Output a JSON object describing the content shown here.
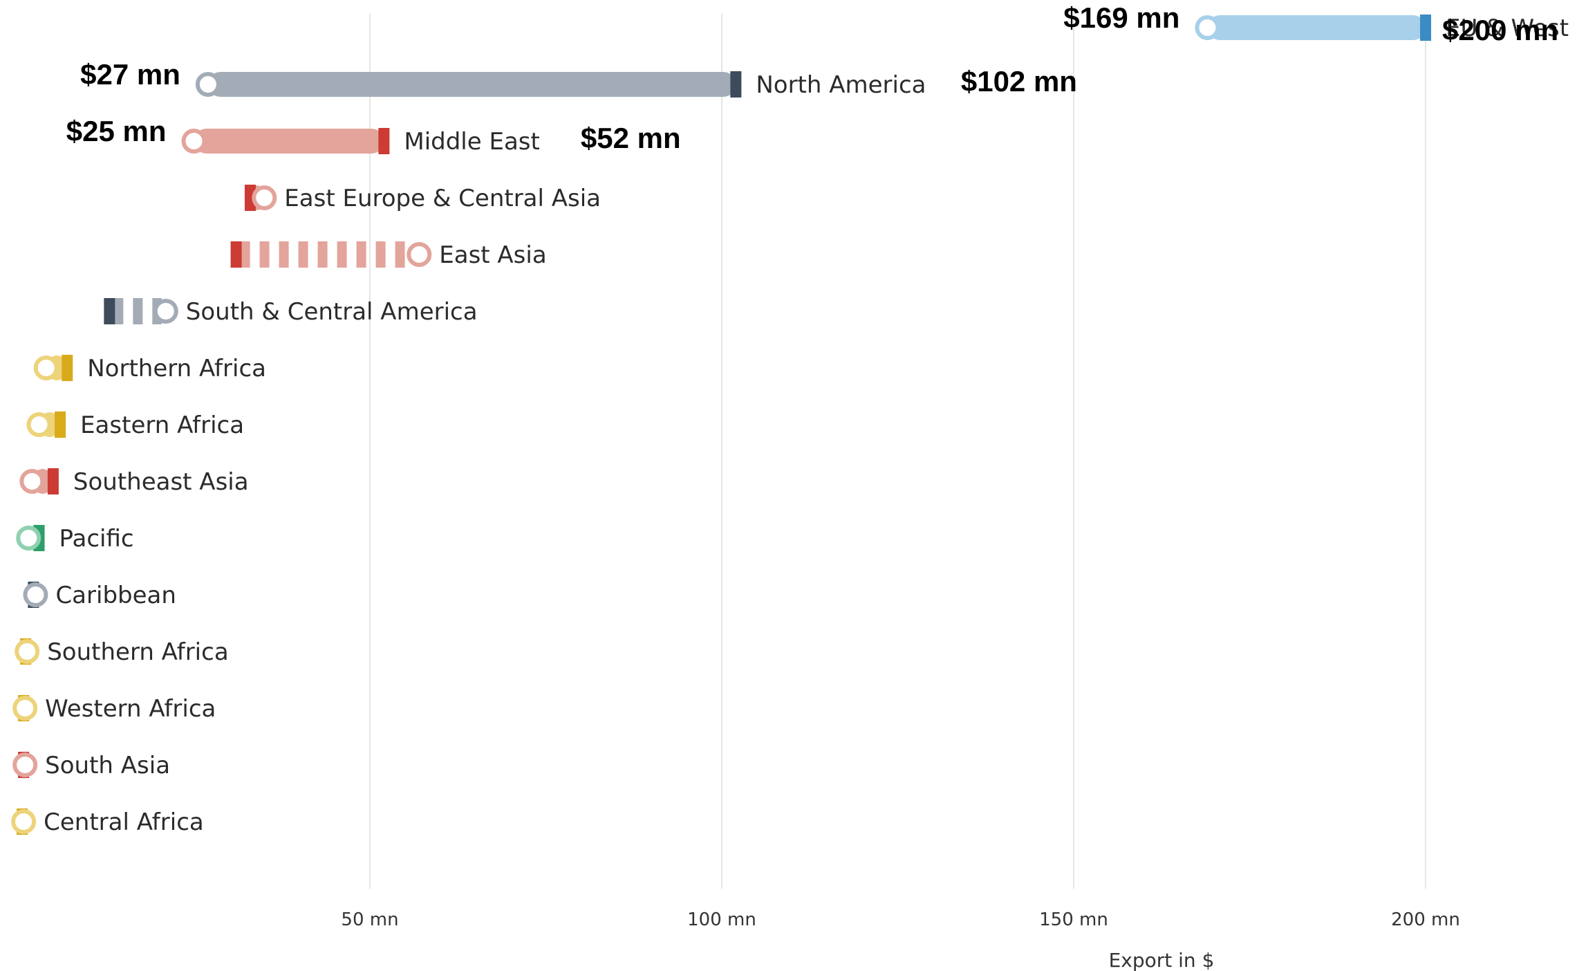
{
  "chart_data": {
    "type": "dumbbell",
    "title": "",
    "xlabel": "Export in $",
    "ylabel": "",
    "xlim": [
      0,
      220
    ],
    "x_ticks": [
      {
        "value": 50,
        "label": "50 mn"
      },
      {
        "value": 100,
        "label": "100 mn"
      },
      {
        "value": 150,
        "label": "150 mn"
      },
      {
        "value": 200,
        "label": "200 mn"
      }
    ],
    "grid": "vertical",
    "series": [
      {
        "name": "EU & West Europe",
        "start": 169,
        "end": 200,
        "color": "#a8d0ea",
        "end_color": "#3b8cc4",
        "style": "solid",
        "start_label": "$169 mn",
        "end_label": "$200 mn"
      },
      {
        "name": "North America",
        "start": 27,
        "end": 102,
        "color": "#a3acb6",
        "end_color": "#3d4b5c",
        "style": "solid",
        "start_label": "$27 mn",
        "end_label": "$102 mn"
      },
      {
        "name": "Middle East",
        "start": 25,
        "end": 52,
        "color": "#e3a49b",
        "end_color": "#cc3b34",
        "style": "solid",
        "start_label": "$25 mn",
        "end_label": "$52 mn"
      },
      {
        "name": "East Europe & Central Asia",
        "start": 35,
        "end": 33,
        "color": "#e3a49b",
        "end_color": "#cc3b34",
        "style": "solid"
      },
      {
        "name": "East Asia",
        "start": 57,
        "end": 31,
        "color": "#e3a49b",
        "end_color": "#cc3b34",
        "style": "dashed"
      },
      {
        "name": "South & Central America",
        "start": 21,
        "end": 13,
        "color": "#a3acb6",
        "end_color": "#3d4b5c",
        "style": "dashed"
      },
      {
        "name": "Northern Africa",
        "start": 4,
        "end": 7,
        "color": "#edd37a",
        "end_color": "#d9aa1a",
        "style": "solid"
      },
      {
        "name": "Eastern Africa",
        "start": 3,
        "end": 6,
        "color": "#edd37a",
        "end_color": "#d9aa1a",
        "style": "solid"
      },
      {
        "name": "Southeast Asia",
        "start": 2,
        "end": 5,
        "color": "#e3a49b",
        "end_color": "#cc3b34",
        "style": "solid"
      },
      {
        "name": "Pacific",
        "start": 1.5,
        "end": 3,
        "color": "#8fd0b0",
        "end_color": "#2e9e6a",
        "style": "solid"
      },
      {
        "name": "Caribbean",
        "start": 2.5,
        "end": 2.2,
        "color": "#a3acb6",
        "end_color": "#3d4b5c",
        "style": "solid"
      },
      {
        "name": "Southern Africa",
        "start": 1.3,
        "end": 1.1,
        "color": "#edd37a",
        "end_color": "#d9aa1a",
        "style": "solid"
      },
      {
        "name": "Western Africa",
        "start": 1.0,
        "end": 0.8,
        "color": "#edd37a",
        "end_color": "#d9aa1a",
        "style": "solid"
      },
      {
        "name": "South Asia",
        "start": 1.0,
        "end": 0.8,
        "color": "#e3a49b",
        "end_color": "#cc3b34",
        "style": "solid"
      },
      {
        "name": "Central Africa",
        "start": 0.8,
        "end": 0.6,
        "color": "#edd37a",
        "end_color": "#d9aa1a",
        "style": "solid"
      }
    ]
  }
}
